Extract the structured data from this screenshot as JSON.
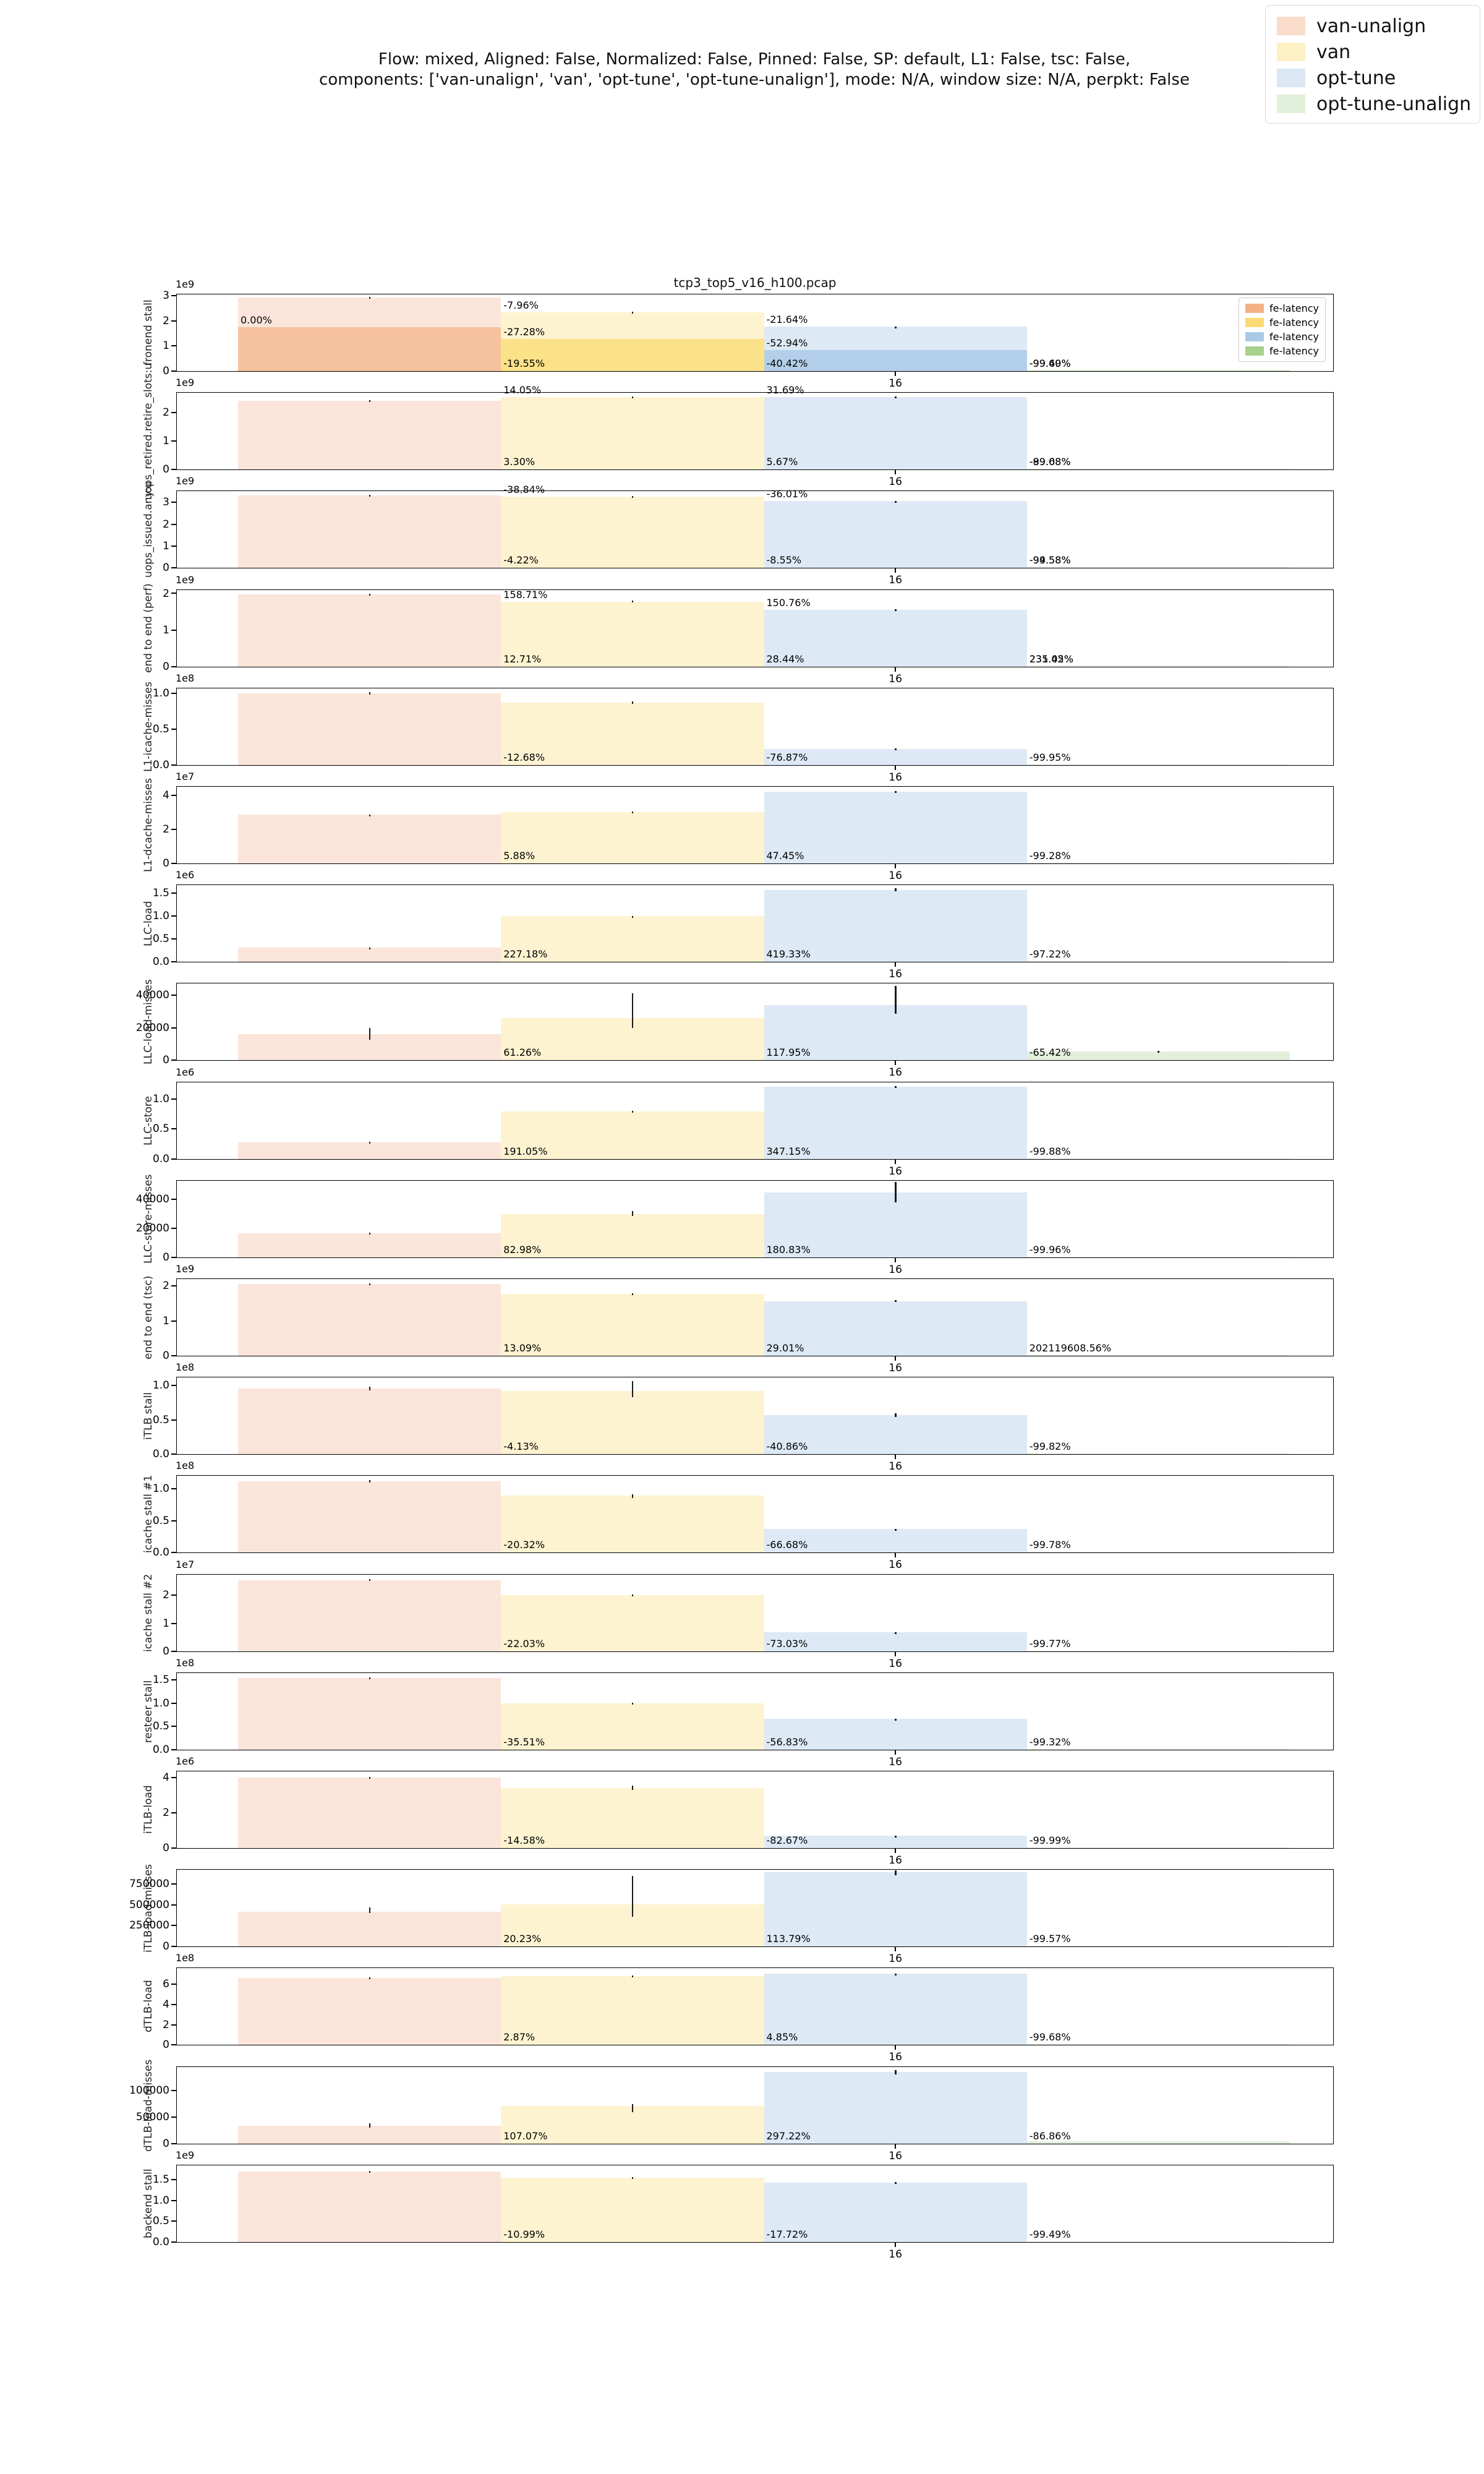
{
  "suptitle": {
    "line1": "Flow: mixed, Aligned: False, Normalized: False, Pinned: False, SP: default, L1: False, tsc: False,",
    "line2": "components: ['van-unalign', 'van', 'opt-tune', 'opt-tune-unalign'], mode: N/A, window size: N/A, perpkt: False"
  },
  "figure_legend": {
    "entries": [
      {
        "label": "van-unalign",
        "color": "#f9dcc9"
      },
      {
        "label": "van",
        "color": "#fdf0c5"
      },
      {
        "label": "opt-tune",
        "color": "#dbe7f3"
      },
      {
        "label": "opt-tune-unalign",
        "color": "#e2efda"
      }
    ]
  },
  "chart_data": {
    "type": "bar",
    "title": "tcp3_top5_v16_h100.pcap",
    "x_tick_label": "16",
    "series_names": [
      "van-unalign",
      "van",
      "opt-tune",
      "opt-tune-unalign"
    ],
    "colors": {
      "light": [
        "#fbe5da",
        "#fdf3d0",
        "#dde9f4",
        "#e3efdb"
      ],
      "dark": [
        "#f6c29e",
        "#fbe187",
        "#b3cfe9",
        "#b7d8a8"
      ],
      "inner_legend": [
        "#f4b183",
        "#fcd975",
        "#aac9e6",
        "#a9d18e"
      ]
    },
    "inner_legend_label": "fe-latency",
    "subplots": [
      {
        "ylabel": "fronend stall",
        "offset": "1e9",
        "yticks": [
          "0",
          "1",
          "2",
          "3"
        ],
        "tick_vals": [
          0,
          1,
          2,
          3
        ],
        "ymax": 3.05,
        "bars": [
          2.93,
          2.33,
          1.76,
          0.004
        ],
        "fe_bars": [
          1.75,
          1.27,
          0.83,
          0.002
        ],
        "err": [
          [
            2.91,
            2.96
          ],
          [
            2.31,
            2.36
          ],
          [
            1.74,
            1.78
          ],
          null
        ],
        "labels": [
          [
            0,
            "top",
            "0.00%",
            1.75
          ],
          [
            1,
            "top",
            "-7.96%",
            2.33
          ],
          [
            1,
            "top",
            "-27.28%",
            1.27
          ],
          [
            1,
            "bot",
            "-19.55%"
          ],
          [
            2,
            "top",
            "-21.64%",
            1.76
          ],
          [
            2,
            "top",
            "-52.94%",
            0.83
          ],
          [
            2,
            "bot",
            "-40.42%"
          ],
          [
            3,
            "bot",
            "-99.49%"
          ],
          [
            3,
            "bot",
            "-99.60%"
          ]
        ],
        "title": true,
        "inner_legend": true
      },
      {
        "ylabel": "uops_retired.retire_slots:u",
        "offset": "1e9",
        "yticks": [
          "0",
          "1",
          "2"
        ],
        "tick_vals": [
          0,
          1,
          2
        ],
        "ymax": 2.7,
        "bars": [
          2.42,
          2.55,
          2.55,
          0.004
        ],
        "err": [
          [
            2.4,
            2.45
          ],
          [
            2.52,
            2.58
          ],
          [
            2.52,
            2.58
          ],
          null
        ],
        "labels": [
          [
            1,
            "top",
            "14.05%",
            2.55
          ],
          [
            1,
            "bot",
            "3.30%"
          ],
          [
            2,
            "top",
            "31.69%",
            2.55
          ],
          [
            2,
            "bot",
            "5.67%"
          ],
          [
            3,
            "bot",
            "-89.08%"
          ],
          [
            3,
            "bot",
            "-99.68%"
          ]
        ]
      },
      {
        "ylabel": "uops_issued.any:u",
        "offset": "1e9",
        "yticks": [
          "0",
          "1",
          "2",
          "3"
        ],
        "tick_vals": [
          0,
          1,
          2,
          3
        ],
        "ymax": 3.5,
        "bars": [
          3.32,
          3.25,
          3.05,
          0.004
        ],
        "err": [
          [
            3.3,
            3.35
          ],
          [
            3.22,
            3.28
          ],
          [
            3.03,
            3.07
          ],
          null
        ],
        "labels": [
          [
            1,
            "top",
            "-38.84%",
            3.25
          ],
          [
            1,
            "bot",
            "-4.22%"
          ],
          [
            2,
            "top",
            "-36.01%",
            3.05
          ],
          [
            2,
            "bot",
            "-8.55%"
          ],
          [
            3,
            "bot",
            "-94.58%"
          ],
          [
            3,
            "bot",
            "-99.58%"
          ]
        ]
      },
      {
        "ylabel": "end to end (perf)",
        "offset": "1e9",
        "yticks": [
          "0",
          "1",
          "2"
        ],
        "tick_vals": [
          0,
          1,
          2
        ],
        "ymax": 2.1,
        "bars": [
          1.97,
          1.78,
          1.55,
          0.003
        ],
        "err": [
          [
            1.95,
            1.99
          ],
          [
            1.76,
            1.8
          ],
          [
            1.53,
            1.57
          ],
          null
        ],
        "labels": [
          [
            1,
            "top",
            "158.71%",
            1.78
          ],
          [
            1,
            "bot",
            "12.71%"
          ],
          [
            2,
            "top",
            "150.76%",
            1.55
          ],
          [
            2,
            "bot",
            "28.44%"
          ],
          [
            3,
            "bot",
            "231.45%"
          ],
          [
            3,
            "bot",
            "235.02%"
          ]
        ]
      },
      {
        "ylabel": "L1-icache-misses",
        "offset": "1e8",
        "yticks": [
          "0.0",
          "0.5",
          "1.0"
        ],
        "tick_vals": [
          0,
          0.5,
          1
        ],
        "ymax": 1.07,
        "bars": [
          1.0,
          0.87,
          0.225,
          0.0005
        ],
        "err": [
          [
            0.98,
            1.02
          ],
          [
            0.85,
            0.89
          ],
          [
            0.22,
            0.23
          ],
          null
        ],
        "labels": [
          [
            1,
            "bot",
            "-12.68%"
          ],
          [
            2,
            "bot",
            "-76.87%"
          ],
          [
            3,
            "bot",
            "-99.95%"
          ]
        ]
      },
      {
        "ylabel": "L1-dcache-misses",
        "offset": "1e7",
        "yticks": [
          "0",
          "2",
          "4"
        ],
        "tick_vals": [
          0,
          2,
          4
        ],
        "ymax": 4.5,
        "bars": [
          2.85,
          3.02,
          4.22,
          0.02
        ],
        "err": [
          [
            2.82,
            2.88
          ],
          [
            2.99,
            3.05
          ],
          [
            4.19,
            4.25
          ],
          null
        ],
        "labels": [
          [
            1,
            "bot",
            "5.88%"
          ],
          [
            2,
            "bot",
            "47.45%"
          ],
          [
            3,
            "bot",
            "-99.28%"
          ]
        ]
      },
      {
        "ylabel": "LLC-load",
        "offset": "1e6",
        "yticks": [
          "0.0",
          "0.5",
          "1.0",
          "1.5"
        ],
        "tick_vals": [
          0,
          0.5,
          1,
          1.5
        ],
        "ymax": 1.68,
        "bars": [
          0.31,
          1.0,
          1.58,
          0.008
        ],
        "err": [
          [
            0.3,
            0.32
          ],
          [
            0.99,
            1.01
          ],
          [
            1.55,
            1.61
          ],
          null
        ],
        "labels": [
          [
            1,
            "bot",
            "227.18%"
          ],
          [
            2,
            "bot",
            "419.33%"
          ],
          [
            3,
            "bot",
            "-97.22%"
          ]
        ]
      },
      {
        "ylabel": "LLC-load-misses",
        "offset": null,
        "yticks": [
          "0",
          "20000",
          "40000"
        ],
        "tick_vals": [
          0,
          20000,
          40000
        ],
        "ymax": 47000,
        "bars": [
          16000,
          25800,
          34000,
          5500
        ],
        "err": [
          [
            12500,
            20000
          ],
          [
            19800,
            41200
          ],
          [
            28500,
            45500
          ],
          [
            5000,
            6000
          ]
        ],
        "labels": [
          [
            1,
            "bot",
            "61.26%"
          ],
          [
            2,
            "bot",
            "117.95%"
          ],
          [
            3,
            "bot",
            "-65.42%"
          ]
        ]
      },
      {
        "ylabel": "LLC-store",
        "offset": "1e6",
        "yticks": [
          "0.0",
          "0.5",
          "1.0"
        ],
        "tick_vals": [
          0,
          0.5,
          1
        ],
        "ymax": 1.28,
        "bars": [
          0.27,
          0.79,
          1.2,
          0.0003
        ],
        "err": [
          [
            0.26,
            0.28
          ],
          [
            0.78,
            0.8
          ],
          [
            1.19,
            1.21
          ],
          null
        ],
        "labels": [
          [
            1,
            "bot",
            "191.05%"
          ],
          [
            2,
            "bot",
            "347.15%"
          ],
          [
            3,
            "bot",
            "-99.88%"
          ]
        ]
      },
      {
        "ylabel": "LLC-store-misses",
        "offset": null,
        "yticks": [
          "0",
          "20000",
          "40000"
        ],
        "tick_vals": [
          0,
          20000,
          40000
        ],
        "ymax": 53000,
        "bars": [
          16500,
          29800,
          45000,
          10
        ],
        "err": [
          [
            15800,
            17200
          ],
          [
            28500,
            32000
          ],
          [
            38000,
            52000
          ],
          null
        ],
        "labels": [
          [
            1,
            "bot",
            "82.98%"
          ],
          [
            2,
            "bot",
            "180.83%"
          ],
          [
            3,
            "bot",
            "-99.96%"
          ]
        ]
      },
      {
        "ylabel": "end to end (tsc)",
        "offset": "1e9",
        "yticks": [
          "0",
          "1",
          "2"
        ],
        "tick_vals": [
          0,
          1,
          2
        ],
        "ymax": 2.2,
        "bars": [
          2.05,
          1.78,
          1.57,
          0.003
        ],
        "err": [
          [
            2.03,
            2.07
          ],
          [
            1.76,
            1.8
          ],
          [
            1.55,
            1.59
          ],
          null
        ],
        "labels": [
          [
            1,
            "bot",
            "13.09%"
          ],
          [
            2,
            "bot",
            "29.01%"
          ],
          [
            3,
            "bot",
            "202119608.56%"
          ]
        ]
      },
      {
        "ylabel": "iTLB stall",
        "offset": "1e8",
        "yticks": [
          "0.0",
          "0.5",
          "1.0"
        ],
        "tick_vals": [
          0,
          0.5,
          1
        ],
        "ymax": 1.12,
        "bars": [
          0.96,
          0.92,
          0.57,
          0.0002
        ],
        "err": [
          [
            0.93,
            0.99
          ],
          [
            0.83,
            1.07
          ],
          [
            0.54,
            0.6
          ],
          null
        ],
        "labels": [
          [
            1,
            "bot",
            "-4.13%"
          ],
          [
            2,
            "bot",
            "-40.86%"
          ],
          [
            3,
            "bot",
            "-99.82%"
          ]
        ]
      },
      {
        "ylabel": "icache stall #1",
        "offset": "1e8",
        "yticks": [
          "0.0",
          "0.5",
          "1.0"
        ],
        "tick_vals": [
          0,
          0.5,
          1
        ],
        "ymax": 1.2,
        "bars": [
          1.12,
          0.89,
          0.37,
          0.0003
        ],
        "err": [
          [
            1.1,
            1.14
          ],
          [
            0.86,
            0.91
          ],
          [
            0.365,
            0.375
          ],
          null
        ],
        "labels": [
          [
            1,
            "bot",
            "-20.32%"
          ],
          [
            2,
            "bot",
            "-66.68%"
          ],
          [
            3,
            "bot",
            "-99.78%"
          ]
        ]
      },
      {
        "ylabel": "icache stall #2",
        "offset": "1e7",
        "yticks": [
          "0",
          "1",
          "2"
        ],
        "tick_vals": [
          0,
          1,
          2
        ],
        "ymax": 2.75,
        "bars": [
          2.55,
          2.0,
          0.67,
          0.0005
        ],
        "err": [
          [
            2.52,
            2.58
          ],
          [
            1.96,
            2.04
          ],
          [
            0.66,
            0.68
          ],
          null
        ],
        "labels": [
          [
            1,
            "bot",
            "-22.03%"
          ],
          [
            2,
            "bot",
            "-73.03%"
          ],
          [
            3,
            "bot",
            "-99.77%"
          ]
        ]
      },
      {
        "ylabel": "resteer stall",
        "offset": "1e8",
        "yticks": [
          "0.0",
          "0.5",
          "1.0",
          "1.5"
        ],
        "tick_vals": [
          0,
          0.5,
          1,
          1.5
        ],
        "ymax": 1.65,
        "bars": [
          1.54,
          1.0,
          0.66,
          0.01
        ],
        "err": [
          [
            1.53,
            1.55
          ],
          [
            0.99,
            1.01
          ],
          [
            0.655,
            0.665
          ],
          null
        ],
        "labels": [
          [
            1,
            "bot",
            "-35.51%"
          ],
          [
            2,
            "bot",
            "-56.83%"
          ],
          [
            3,
            "bot",
            "-99.32%"
          ]
        ]
      },
      {
        "ylabel": "iTLB-load",
        "offset": "1e6",
        "yticks": [
          "0",
          "2",
          "4"
        ],
        "tick_vals": [
          0,
          2,
          4
        ],
        "ymax": 4.35,
        "bars": [
          4.0,
          3.42,
          0.7,
          0.0004
        ],
        "err": [
          [
            3.97,
            4.03
          ],
          [
            3.3,
            3.55
          ],
          [
            0.69,
            0.71
          ],
          null
        ],
        "labels": [
          [
            1,
            "bot",
            "-14.58%"
          ],
          [
            2,
            "bot",
            "-82.67%"
          ],
          [
            3,
            "bot",
            "-99.99%"
          ]
        ]
      },
      {
        "ylabel": "iTLB-load-misses",
        "offset": null,
        "yticks": [
          "0",
          "250000",
          "500000",
          "750000"
        ],
        "tick_vals": [
          0,
          250000,
          500000,
          750000
        ],
        "ymax": 920000,
        "bars": [
          420000,
          505000,
          890000,
          1800
        ],
        "err": [
          [
            400000,
            470000
          ],
          [
            360000,
            845000
          ],
          [
            855000,
            912000
          ],
          null
        ],
        "labels": [
          [
            1,
            "bot",
            "20.23%"
          ],
          [
            2,
            "bot",
            "113.79%"
          ],
          [
            3,
            "bot",
            "-99.57%"
          ]
        ]
      },
      {
        "ylabel": "dTLB-load",
        "offset": "1e8",
        "yticks": [
          "0",
          "2",
          "4",
          "6"
        ],
        "tick_vals": [
          0,
          2,
          4,
          6
        ],
        "ymax": 7.6,
        "bars": [
          6.65,
          6.85,
          7.05,
          0.02
        ],
        "err": [
          [
            6.6,
            6.7
          ],
          [
            6.8,
            6.9
          ],
          [
            7.0,
            7.1
          ],
          null
        ],
        "labels": [
          [
            1,
            "bot",
            "2.87%"
          ],
          [
            2,
            "bot",
            "4.85%"
          ],
          [
            3,
            "bot",
            "-99.68%"
          ]
        ]
      },
      {
        "ylabel": "dTLB-load-misses",
        "offset": null,
        "yticks": [
          "0",
          "50000",
          "100000"
        ],
        "tick_vals": [
          0,
          50000,
          100000
        ],
        "ymax": 145000,
        "bars": [
          34000,
          71000,
          135000,
          4500
        ],
        "err": [
          [
            30000,
            38000
          ],
          [
            59000,
            74000
          ],
          [
            130000,
            139000
          ],
          null
        ],
        "labels": [
          [
            1,
            "bot",
            "107.07%"
          ],
          [
            2,
            "bot",
            "297.22%"
          ],
          [
            3,
            "bot",
            "-86.86%"
          ]
        ]
      },
      {
        "ylabel": "backend stall",
        "offset": "1e9",
        "yticks": [
          "0.0",
          "0.5",
          "1.0",
          "1.5"
        ],
        "tick_vals": [
          0,
          0.5,
          1,
          1.5
        ],
        "ymax": 1.85,
        "bars": [
          1.7,
          1.55,
          1.43,
          0.009
        ],
        "err": [
          [
            1.69,
            1.71
          ],
          [
            1.54,
            1.56
          ],
          [
            1.42,
            1.44
          ],
          null
        ],
        "labels": [
          [
            1,
            "bot",
            "-10.99%"
          ],
          [
            2,
            "bot",
            "-17.72%"
          ],
          [
            3,
            "bot",
            "-99.49%"
          ]
        ]
      }
    ]
  }
}
